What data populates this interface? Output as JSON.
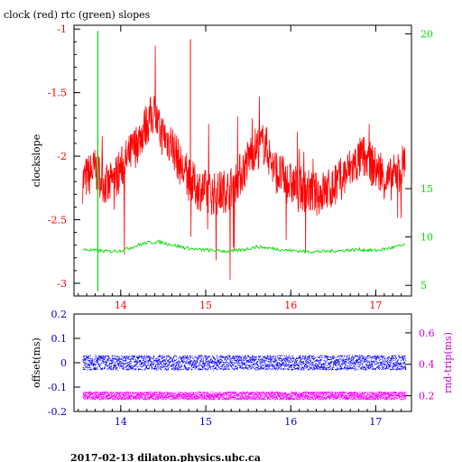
{
  "chart_data": [
    {
      "type": "line",
      "title": "clock (red) rtc (green) slopes",
      "xlabel": "",
      "ylabel": "clockslope",
      "xlim": [
        13.45,
        17.42
      ],
      "ylim": [
        -3.1,
        -0.97
      ],
      "x_ticks": [
        "14",
        "15",
        "16",
        "17"
      ],
      "y_ticks": [
        "-1",
        "-1.5",
        "-2",
        "-2.5",
        "-3"
      ],
      "y2_ticks": [
        "5",
        "10",
        "15",
        "20"
      ],
      "y2lim": [
        3.9,
        31.9
      ],
      "colors": {
        "clock": "#ff0000",
        "rtc": "#00dd00",
        "axis": "#000000",
        "left_ticks": "#ff0000",
        "right_ticks": "#00dd00"
      },
      "series": [
        {
          "name": "clock",
          "axis": "left",
          "x": [
            13.55,
            13.7,
            13.85,
            14.0,
            14.15,
            14.3,
            14.4,
            14.45,
            14.6,
            14.75,
            14.9,
            15.1,
            15.3,
            15.45,
            15.55,
            15.7,
            15.8,
            15.95,
            16.1,
            16.3,
            16.5,
            16.7,
            16.85,
            17.0,
            17.15,
            17.3,
            17.35
          ],
          "values": [
            -2.2,
            -2.1,
            -2.25,
            -2.1,
            -1.95,
            -1.75,
            -1.65,
            -1.8,
            -1.9,
            -2.15,
            -2.25,
            -2.3,
            -2.25,
            -2.1,
            -1.95,
            -1.9,
            -2.1,
            -2.2,
            -2.25,
            -2.3,
            -2.25,
            -2.1,
            -2.0,
            -2.1,
            -2.2,
            -2.1,
            -2.0
          ]
        },
        {
          "name": "rtc",
          "axis": "right",
          "x": [
            13.55,
            13.7,
            13.85,
            14.0,
            14.15,
            14.3,
            14.45,
            14.6,
            14.75,
            14.9,
            15.1,
            15.3,
            15.45,
            15.6,
            15.8,
            16.0,
            16.2,
            16.4,
            16.6,
            16.8,
            17.0,
            17.2,
            17.35
          ],
          "values": [
            8.7,
            8.6,
            8.5,
            8.6,
            9.0,
            9.4,
            9.5,
            9.2,
            8.9,
            8.7,
            8.6,
            8.5,
            8.7,
            9.0,
            8.8,
            8.6,
            8.5,
            8.5,
            8.6,
            8.7,
            8.6,
            8.9,
            9.2
          ]
        }
      ],
      "annotations": [
        {
          "series": "rtc",
          "x": 13.73,
          "y_top": 31.3,
          "y_bottom": 4.4
        },
        {
          "series": "clock",
          "x": 14.82,
          "y": -1.08
        }
      ]
    },
    {
      "type": "scatter",
      "xlabel": "",
      "ylabel": "offset(ms)",
      "y2label": "rnd-trip(ms)",
      "xlim": [
        13.45,
        17.42
      ],
      "ylim": [
        -0.2,
        0.2
      ],
      "y2lim": [
        0.1,
        0.72
      ],
      "x_ticks": [
        "14",
        "15",
        "16",
        "17"
      ],
      "y_ticks": [
        "0.2",
        "0.1",
        "0",
        "-0.1",
        "-0.2"
      ],
      "y2_ticks": [
        "0.6",
        "0.4",
        "0.2"
      ],
      "colors": {
        "offset": "#0000ff",
        "rndtrip": "#ff00ff",
        "axis": "#000000",
        "left_ticks": "#0000cc",
        "right_ticks": "#cc00cc"
      },
      "series": [
        {
          "name": "offset(ms)",
          "axis": "left",
          "x": [
            13.55,
            14.0,
            14.5,
            15.0,
            15.5,
            16.0,
            16.5,
            17.0,
            17.35
          ],
          "values": [
            0.0,
            0.0,
            0.0,
            0.0,
            0.0,
            0.0,
            0.0,
            0.0,
            0.0
          ],
          "spread": 0.03
        },
        {
          "name": "rnd-trip(ms)",
          "axis": "right",
          "x": [
            13.55,
            14.0,
            14.5,
            15.0,
            15.5,
            16.0,
            16.5,
            17.0,
            17.35
          ],
          "values": [
            0.2,
            0.2,
            0.2,
            0.2,
            0.2,
            0.2,
            0.2,
            0.2,
            0.2
          ],
          "spread": 0.025
        }
      ]
    }
  ],
  "footer": "2017-02-13  dilaton.physics.ubc.ca"
}
